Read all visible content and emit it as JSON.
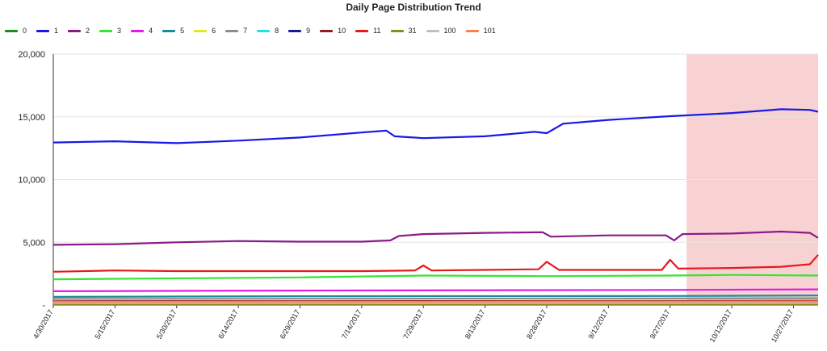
{
  "chart_data": {
    "type": "line",
    "title": "Daily Page Distribution Trend",
    "xlabel": "",
    "ylabel": "",
    "ylim": [
      0,
      20000
    ],
    "y_ticks": [
      "-",
      "5,000",
      "10,000",
      "15,000",
      "20,000"
    ],
    "y_tick_values": [
      0,
      5000,
      10000,
      15000,
      20000
    ],
    "x_tick_labels": [
      "4/30/2017",
      "5/15/2017",
      "5/30/2017",
      "6/14/2017",
      "6/29/2017",
      "7/14/2017",
      "7/29/2017",
      "8/13/2017",
      "8/28/2017",
      "9/12/2017",
      "9/27/2017",
      "10/12/2017",
      "10/27/2017"
    ],
    "x_range": [
      "4/30/2017",
      "11/2/2017"
    ],
    "highlight_region": {
      "start": "10/1/2017",
      "end": "11/2/2017",
      "color": "#f8d2d3"
    },
    "grid": "horizontal",
    "legend_position": "top-left",
    "series": [
      {
        "name": "0",
        "color": "#1a8c1a",
        "points": [
          [
            "4/30/2017",
            180
          ],
          [
            "6/29/2017",
            190
          ],
          [
            "8/28/2017",
            200
          ],
          [
            "11/2/2017",
            210
          ]
        ]
      },
      {
        "name": "1",
        "color": "#1919e6",
        "points": [
          [
            "4/30/2017",
            12950
          ],
          [
            "5/15/2017",
            13050
          ],
          [
            "5/30/2017",
            12900
          ],
          [
            "6/14/2017",
            13100
          ],
          [
            "6/29/2017",
            13350
          ],
          [
            "7/14/2017",
            13750
          ],
          [
            "7/20/2017",
            13900
          ],
          [
            "7/22/2017",
            13450
          ],
          [
            "7/29/2017",
            13300
          ],
          [
            "8/13/2017",
            13450
          ],
          [
            "8/25/2017",
            13800
          ],
          [
            "8/28/2017",
            13700
          ],
          [
            "9/1/2017",
            14450
          ],
          [
            "9/12/2017",
            14750
          ],
          [
            "9/27/2017",
            15050
          ],
          [
            "10/12/2017",
            15300
          ],
          [
            "10/24/2017",
            15600
          ],
          [
            "10/31/2017",
            15550
          ],
          [
            "11/2/2017",
            15400
          ]
        ]
      },
      {
        "name": "2",
        "color": "#8a1a8a",
        "points": [
          [
            "4/30/2017",
            4800
          ],
          [
            "5/15/2017",
            4850
          ],
          [
            "5/30/2017",
            5000
          ],
          [
            "6/14/2017",
            5100
          ],
          [
            "6/29/2017",
            5050
          ],
          [
            "7/14/2017",
            5050
          ],
          [
            "7/21/2017",
            5150
          ],
          [
            "7/23/2017",
            5500
          ],
          [
            "7/29/2017",
            5650
          ],
          [
            "8/13/2017",
            5750
          ],
          [
            "8/27/2017",
            5800
          ],
          [
            "8/29/2017",
            5450
          ],
          [
            "9/12/2017",
            5550
          ],
          [
            "9/26/2017",
            5550
          ],
          [
            "9/28/2017",
            5150
          ],
          [
            "9/30/2017",
            5650
          ],
          [
            "10/12/2017",
            5700
          ],
          [
            "10/24/2017",
            5850
          ],
          [
            "10/31/2017",
            5750
          ],
          [
            "11/2/2017",
            5350
          ]
        ]
      },
      {
        "name": "3",
        "color": "#33e633",
        "points": [
          [
            "4/30/2017",
            2050
          ],
          [
            "6/29/2017",
            2200
          ],
          [
            "7/29/2017",
            2350
          ],
          [
            "8/28/2017",
            2300
          ],
          [
            "9/27/2017",
            2350
          ],
          [
            "10/12/2017",
            2400
          ],
          [
            "11/2/2017",
            2350
          ]
        ]
      },
      {
        "name": "4",
        "color": "#e61ae6",
        "points": [
          [
            "4/30/2017",
            1100
          ],
          [
            "6/29/2017",
            1150
          ],
          [
            "9/27/2017",
            1200
          ],
          [
            "11/2/2017",
            1250
          ]
        ]
      },
      {
        "name": "5",
        "color": "#1a8c99",
        "points": [
          [
            "4/30/2017",
            650
          ],
          [
            "6/29/2017",
            700
          ],
          [
            "9/27/2017",
            720
          ],
          [
            "11/2/2017",
            760
          ]
        ]
      },
      {
        "name": "6",
        "color": "#e6e61a",
        "points": [
          [
            "4/30/2017",
            90
          ],
          [
            "11/2/2017",
            100
          ]
        ]
      },
      {
        "name": "7",
        "color": "#8c8c8c",
        "points": [
          [
            "4/30/2017",
            480
          ],
          [
            "6/29/2017",
            500
          ],
          [
            "9/27/2017",
            520
          ],
          [
            "11/2/2017",
            540
          ]
        ]
      },
      {
        "name": "8",
        "color": "#1ae6e6",
        "points": [
          [
            "4/30/2017",
            60
          ],
          [
            "11/2/2017",
            70
          ]
        ]
      },
      {
        "name": "9",
        "color": "#1a1a99",
        "points": [
          [
            "4/30/2017",
            40
          ],
          [
            "11/2/2017",
            45
          ]
        ]
      },
      {
        "name": "10",
        "color": "#991a1a",
        "points": [
          [
            "4/30/2017",
            300
          ],
          [
            "6/29/2017",
            310
          ],
          [
            "9/27/2017",
            320
          ],
          [
            "11/2/2017",
            330
          ]
        ]
      },
      {
        "name": "11",
        "color": "#e61a1a",
        "points": [
          [
            "4/30/2017",
            2650
          ],
          [
            "5/15/2017",
            2750
          ],
          [
            "5/30/2017",
            2700
          ],
          [
            "6/14/2017",
            2700
          ],
          [
            "6/29/2017",
            2700
          ],
          [
            "7/14/2017",
            2700
          ],
          [
            "7/27/2017",
            2750
          ],
          [
            "7/29/2017",
            3150
          ],
          [
            "7/31/2017",
            2750
          ],
          [
            "8/13/2017",
            2800
          ],
          [
            "8/26/2017",
            2850
          ],
          [
            "8/28/2017",
            3450
          ],
          [
            "8/31/2017",
            2800
          ],
          [
            "9/12/2017",
            2800
          ],
          [
            "9/25/2017",
            2800
          ],
          [
            "9/27/2017",
            3600
          ],
          [
            "9/29/2017",
            2900
          ],
          [
            "10/12/2017",
            2950
          ],
          [
            "10/24/2017",
            3050
          ],
          [
            "10/31/2017",
            3250
          ],
          [
            "11/2/2017",
            4000
          ]
        ]
      },
      {
        "name": "31",
        "color": "#8c8c1a",
        "points": [
          [
            "4/30/2017",
            20
          ],
          [
            "11/2/2017",
            25
          ]
        ]
      },
      {
        "name": "100",
        "color": "#c0c0c0",
        "points": [
          [
            "4/30/2017",
            150
          ],
          [
            "11/2/2017",
            160
          ]
        ]
      },
      {
        "name": "101",
        "color": "#ff7f50",
        "points": [
          [
            "4/30/2017",
            250
          ],
          [
            "6/29/2017",
            260
          ],
          [
            "11/2/2017",
            280
          ]
        ]
      }
    ]
  }
}
